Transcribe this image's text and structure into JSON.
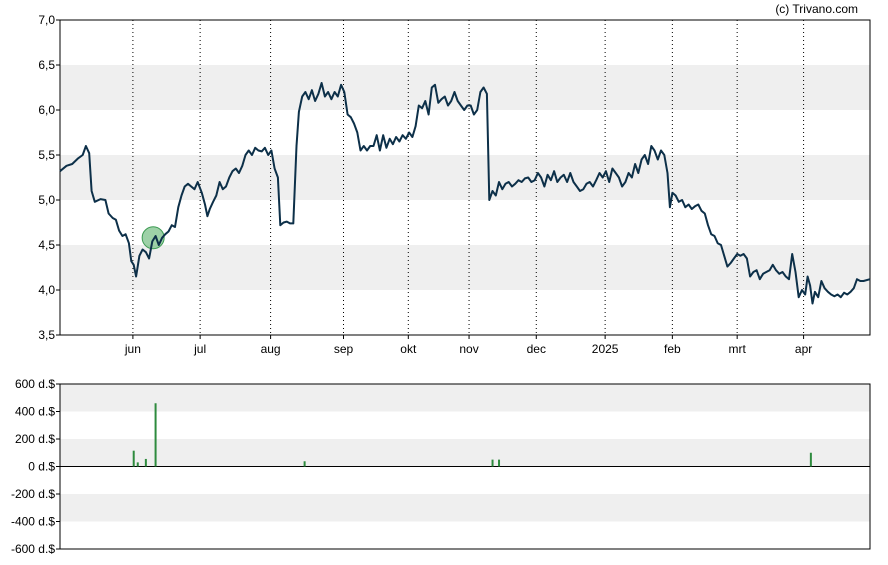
{
  "credit": "(c) Trivano.com",
  "colors": {
    "price_line": "#0d3049",
    "volume_bar": "#2e8b3e",
    "band": "#efefef",
    "marker_fill": "#7cc28a",
    "marker_stroke": "#3c9a52",
    "axis": "#000000"
  },
  "chart_data": [
    {
      "type": "line",
      "title": "",
      "xlabel": "",
      "ylabel": "",
      "ylim": [
        3.5,
        7.0
      ],
      "y_ticks": [
        "3,5",
        "4,0",
        "4,5",
        "5,0",
        "5,5",
        "6,0",
        "6,5",
        "7,0"
      ],
      "x_range": [
        0,
        100
      ],
      "x_ticks": [
        {
          "label": "jun",
          "x": 9
        },
        {
          "label": "jul",
          "x": 17.3
        },
        {
          "label": "aug",
          "x": 26
        },
        {
          "label": "sep",
          "x": 35
        },
        {
          "label": "okt",
          "x": 43
        },
        {
          "label": "nov",
          "x": 50.5
        },
        {
          "label": "dec",
          "x": 58.8
        },
        {
          "label": "2025",
          "x": 67.3
        },
        {
          "label": "feb",
          "x": 75.6
        },
        {
          "label": "mrt",
          "x": 83.6
        },
        {
          "label": "apr",
          "x": 91.8
        }
      ],
      "grid": "vertical-dotted",
      "marker": {
        "x": 11.5,
        "y": 4.58
      },
      "series": [
        {
          "values": [
            [
              0,
              5.32
            ],
            [
              0.8,
              5.38
            ],
            [
              1.5,
              5.4
            ],
            [
              2.2,
              5.46
            ],
            [
              2.8,
              5.5
            ],
            [
              3.2,
              5.6
            ],
            [
              3.6,
              5.52
            ],
            [
              3.9,
              5.1
            ],
            [
              4.3,
              4.98
            ],
            [
              5.0,
              5.01
            ],
            [
              5.6,
              5.0
            ],
            [
              6.0,
              4.85
            ],
            [
              6.5,
              4.8
            ],
            [
              6.9,
              4.78
            ],
            [
              7.3,
              4.66
            ],
            [
              7.7,
              4.6
            ],
            [
              8.1,
              4.62
            ],
            [
              8.5,
              4.52
            ],
            [
              8.8,
              4.32
            ],
            [
              9.1,
              4.28
            ],
            [
              9.4,
              4.15
            ],
            [
              9.8,
              4.38
            ],
            [
              10.2,
              4.45
            ],
            [
              10.6,
              4.42
            ],
            [
              11.0,
              4.35
            ],
            [
              11.4,
              4.54
            ],
            [
              11.8,
              4.6
            ],
            [
              12.2,
              4.5
            ],
            [
              12.6,
              4.58
            ],
            [
              13.0,
              4.62
            ],
            [
              13.4,
              4.65
            ],
            [
              13.8,
              4.72
            ],
            [
              14.2,
              4.7
            ],
            [
              14.6,
              4.92
            ],
            [
              15.0,
              5.05
            ],
            [
              15.4,
              5.15
            ],
            [
              15.8,
              5.18
            ],
            [
              16.2,
              5.15
            ],
            [
              16.6,
              5.12
            ],
            [
              17.0,
              5.2
            ],
            [
              17.5,
              5.08
            ],
            [
              17.9,
              4.95
            ],
            [
              18.2,
              4.82
            ],
            [
              18.5,
              4.9
            ],
            [
              18.9,
              4.98
            ],
            [
              19.3,
              5.05
            ],
            [
              19.7,
              5.2
            ],
            [
              20.1,
              5.12
            ],
            [
              20.5,
              5.15
            ],
            [
              20.9,
              5.25
            ],
            [
              21.3,
              5.32
            ],
            [
              21.7,
              5.35
            ],
            [
              22.1,
              5.3
            ],
            [
              22.5,
              5.38
            ],
            [
              22.9,
              5.5
            ],
            [
              23.3,
              5.55
            ],
            [
              23.7,
              5.5
            ],
            [
              24.1,
              5.58
            ],
            [
              24.5,
              5.55
            ],
            [
              24.9,
              5.54
            ],
            [
              25.3,
              5.58
            ],
            [
              25.7,
              5.5
            ],
            [
              26.1,
              5.55
            ],
            [
              26.5,
              5.35
            ],
            [
              26.9,
              5.25
            ],
            [
              27.2,
              4.72
            ],
            [
              27.6,
              4.75
            ],
            [
              28.0,
              4.76
            ],
            [
              28.4,
              4.74
            ],
            [
              28.8,
              4.74
            ],
            [
              29.2,
              5.6
            ],
            [
              29.5,
              5.98
            ],
            [
              29.9,
              6.15
            ],
            [
              30.3,
              6.2
            ],
            [
              30.7,
              6.12
            ],
            [
              31.1,
              6.22
            ],
            [
              31.5,
              6.1
            ],
            [
              31.9,
              6.18
            ],
            [
              32.3,
              6.3
            ],
            [
              32.7,
              6.15
            ],
            [
              33.1,
              6.2
            ],
            [
              33.5,
              6.12
            ],
            [
              33.9,
              6.2
            ],
            [
              34.3,
              6.15
            ],
            [
              34.7,
              6.28
            ],
            [
              35.1,
              6.2
            ],
            [
              35.5,
              5.95
            ],
            [
              35.9,
              5.92
            ],
            [
              36.3,
              5.85
            ],
            [
              36.7,
              5.75
            ],
            [
              37.1,
              5.55
            ],
            [
              37.5,
              5.6
            ],
            [
              37.9,
              5.55
            ],
            [
              38.3,
              5.6
            ],
            [
              38.7,
              5.6
            ],
            [
              39.1,
              5.72
            ],
            [
              39.5,
              5.55
            ],
            [
              39.9,
              5.72
            ],
            [
              40.3,
              5.58
            ],
            [
              40.7,
              5.68
            ],
            [
              41.1,
              5.62
            ],
            [
              41.5,
              5.7
            ],
            [
              41.9,
              5.65
            ],
            [
              42.3,
              5.72
            ],
            [
              42.7,
              5.68
            ],
            [
              43.1,
              5.75
            ],
            [
              43.5,
              5.7
            ],
            [
              43.9,
              5.82
            ],
            [
              44.3,
              6.05
            ],
            [
              44.7,
              6.02
            ],
            [
              45.1,
              6.1
            ],
            [
              45.5,
              5.95
            ],
            [
              45.9,
              6.25
            ],
            [
              46.3,
              6.28
            ],
            [
              46.7,
              6.08
            ],
            [
              47.1,
              6.12
            ],
            [
              47.5,
              6.15
            ],
            [
              47.9,
              6.05
            ],
            [
              48.3,
              6.1
            ],
            [
              48.7,
              6.2
            ],
            [
              49.1,
              6.1
            ],
            [
              49.5,
              6.05
            ],
            [
              49.9,
              6.0
            ],
            [
              50.3,
              6.05
            ],
            [
              50.7,
              6.05
            ],
            [
              51.1,
              5.95
            ],
            [
              51.5,
              6.0
            ],
            [
              51.9,
              6.2
            ],
            [
              52.3,
              6.25
            ],
            [
              52.7,
              6.18
            ],
            [
              53.0,
              5.0
            ],
            [
              53.4,
              5.1
            ],
            [
              53.8,
              5.05
            ],
            [
              54.2,
              5.2
            ],
            [
              54.6,
              5.12
            ],
            [
              55.0,
              5.18
            ],
            [
              55.4,
              5.2
            ],
            [
              55.8,
              5.15
            ],
            [
              56.2,
              5.18
            ],
            [
              56.6,
              5.22
            ],
            [
              57.0,
              5.2
            ],
            [
              57.4,
              5.24
            ],
            [
              57.8,
              5.25
            ],
            [
              58.2,
              5.2
            ],
            [
              58.6,
              5.22
            ],
            [
              59.0,
              5.3
            ],
            [
              59.4,
              5.25
            ],
            [
              59.8,
              5.15
            ],
            [
              60.2,
              5.28
            ],
            [
              60.6,
              5.22
            ],
            [
              61.0,
              5.32
            ],
            [
              61.4,
              5.2
            ],
            [
              61.8,
              5.25
            ],
            [
              62.2,
              5.28
            ],
            [
              62.6,
              5.2
            ],
            [
              63.0,
              5.3
            ],
            [
              63.4,
              5.2
            ],
            [
              63.8,
              5.15
            ],
            [
              64.2,
              5.1
            ],
            [
              64.6,
              5.12
            ],
            [
              65.0,
              5.18
            ],
            [
              65.4,
              5.2
            ],
            [
              65.8,
              5.15
            ],
            [
              66.2,
              5.22
            ],
            [
              66.6,
              5.3
            ],
            [
              67.0,
              5.25
            ],
            [
              67.4,
              5.32
            ],
            [
              67.8,
              5.2
            ],
            [
              68.2,
              5.35
            ],
            [
              68.6,
              5.3
            ],
            [
              69.0,
              5.25
            ],
            [
              69.4,
              5.15
            ],
            [
              69.8,
              5.2
            ],
            [
              70.2,
              5.3
            ],
            [
              70.6,
              5.25
            ],
            [
              71.0,
              5.4
            ],
            [
              71.4,
              5.3
            ],
            [
              71.8,
              5.45
            ],
            [
              72.2,
              5.5
            ],
            [
              72.6,
              5.4
            ],
            [
              73.0,
              5.6
            ],
            [
              73.4,
              5.55
            ],
            [
              73.8,
              5.45
            ],
            [
              74.2,
              5.55
            ],
            [
              74.6,
              5.5
            ],
            [
              75.0,
              5.3
            ],
            [
              75.3,
              4.92
            ],
            [
              75.6,
              5.08
            ],
            [
              76.0,
              5.05
            ],
            [
              76.4,
              4.98
            ],
            [
              76.8,
              5.0
            ],
            [
              77.2,
              4.92
            ],
            [
              77.6,
              4.95
            ],
            [
              78.0,
              4.9
            ],
            [
              78.4,
              4.93
            ],
            [
              78.8,
              4.95
            ],
            [
              79.2,
              4.88
            ],
            [
              79.6,
              4.85
            ],
            [
              80.0,
              4.72
            ],
            [
              80.4,
              4.62
            ],
            [
              80.8,
              4.6
            ],
            [
              81.2,
              4.52
            ],
            [
              81.6,
              4.5
            ],
            [
              82.0,
              4.38
            ],
            [
              82.4,
              4.26
            ],
            [
              82.8,
              4.3
            ],
            [
              83.2,
              4.35
            ],
            [
              83.6,
              4.4
            ],
            [
              84.0,
              4.38
            ],
            [
              84.4,
              4.4
            ],
            [
              84.8,
              4.35
            ],
            [
              85.2,
              4.15
            ],
            [
              85.6,
              4.2
            ],
            [
              86.0,
              4.22
            ],
            [
              86.4,
              4.12
            ],
            [
              86.8,
              4.18
            ],
            [
              87.2,
              4.2
            ],
            [
              87.6,
              4.22
            ],
            [
              88.0,
              4.28
            ],
            [
              88.4,
              4.22
            ],
            [
              88.8,
              4.18
            ],
            [
              89.2,
              4.2
            ],
            [
              89.6,
              4.15
            ],
            [
              90.0,
              4.12
            ],
            [
              90.4,
              4.4
            ],
            [
              90.8,
              4.2
            ],
            [
              91.2,
              3.92
            ],
            [
              91.6,
              4.0
            ],
            [
              92.0,
              3.95
            ],
            [
              92.3,
              4.15
            ],
            [
              92.6,
              4.05
            ],
            [
              92.9,
              3.85
            ],
            [
              93.2,
              3.98
            ],
            [
              93.6,
              3.92
            ],
            [
              94.0,
              4.1
            ],
            [
              94.4,
              4.02
            ],
            [
              94.8,
              3.98
            ],
            [
              95.2,
              3.95
            ],
            [
              95.6,
              3.93
            ],
            [
              96.0,
              3.95
            ],
            [
              96.4,
              3.92
            ],
            [
              96.8,
              3.97
            ],
            [
              97.2,
              3.95
            ],
            [
              97.6,
              3.98
            ],
            [
              98.0,
              4.02
            ],
            [
              98.4,
              4.12
            ],
            [
              98.8,
              4.1
            ],
            [
              99.2,
              4.1
            ],
            [
              100.0,
              4.12
            ]
          ]
        }
      ]
    },
    {
      "type": "bar",
      "title": "",
      "xlabel": "",
      "ylabel": "",
      "ylim": [
        -600,
        600
      ],
      "y_ticks": [
        "-600 d.$",
        "-400 d.$",
        "-200 d.$",
        "0 d.$",
        "200 d.$",
        "400 d.$",
        "600 d.$"
      ],
      "x_range": [
        0,
        100
      ],
      "series": [
        {
          "values": [
            [
              9.1,
              115
            ],
            [
              9.6,
              30
            ],
            [
              10.6,
              55
            ],
            [
              11.8,
              460
            ],
            [
              30.2,
              38
            ],
            [
              53.4,
              50
            ],
            [
              54.2,
              50
            ],
            [
              92.7,
              100
            ]
          ]
        }
      ]
    }
  ]
}
